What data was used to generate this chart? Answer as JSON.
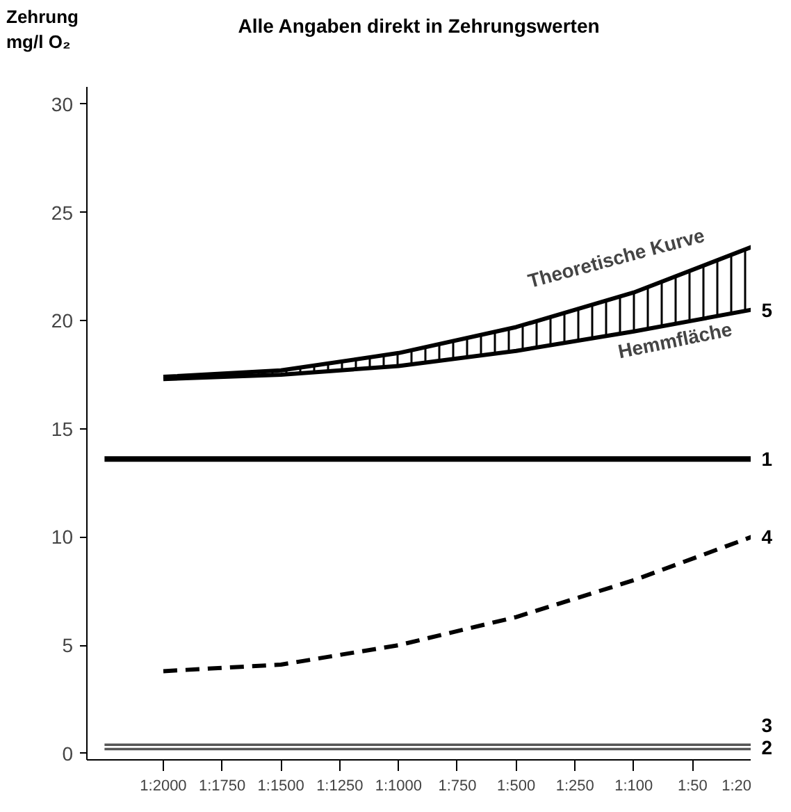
{
  "chart_data": {
    "type": "line",
    "title": "Alle Angaben direkt in Zehrungswerten",
    "ylabel": "Zehrung\nmg/l O₂",
    "categories": [
      null,
      "1:2000",
      "1:1750",
      "1:1500",
      "1:1250",
      "1:1000",
      "1:750",
      "1:500",
      "1:250",
      "1:100",
      "1:50",
      "1:20"
    ],
    "ylim": [
      -0.3,
      30.8
    ],
    "yticks": [
      0,
      5,
      10,
      15,
      20,
      25,
      30
    ],
    "grid": false,
    "series": [
      {
        "name": "5",
        "color": "#000000",
        "values": [
          null,
          17.3,
          null,
          17.5,
          null,
          17.9,
          null,
          18.6,
          null,
          19.5,
          null,
          20.5
        ]
      },
      {
        "color": "#000000",
        "values": [
          null,
          17.4,
          null,
          17.7,
          null,
          18.5,
          null,
          19.7,
          null,
          21.3,
          null,
          23.4
        ],
        "lower": [
          null,
          17.3,
          null,
          17.5,
          null,
          17.9,
          null,
          18.6,
          null,
          19.5,
          null,
          20.5
        ],
        "upper": [
          null,
          17.4,
          null,
          17.7,
          null,
          18.5,
          null,
          19.7,
          null,
          21.3,
          null,
          23.4
        ]
      },
      {
        "name": "1",
        "color": "#000000",
        "values": [
          13.6,
          13.6,
          13.6,
          13.6,
          13.6,
          13.6,
          13.6,
          13.6,
          13.6,
          13.6,
          13.6,
          13.6
        ]
      },
      {
        "name": "4",
        "color": "#000000",
        "values": [
          null,
          3.8,
          null,
          4.1,
          null,
          5.0,
          null,
          6.3,
          null,
          8.0,
          null,
          10.0
        ],
        "line_style": "dashed"
      },
      {
        "name": "3",
        "color": "#555555",
        "values": [
          0.4,
          0.4,
          0.4,
          0.4,
          0.4,
          0.4,
          0.4,
          0.4,
          0.4,
          0.4,
          0.4,
          0.4
        ]
      },
      {
        "name": "2",
        "color": "#555555",
        "values": [
          0.2,
          0.2,
          0.2,
          0.2,
          0.2,
          0.2,
          0.2,
          0.2,
          0.2,
          0.2,
          0.2,
          0.2
        ]
      }
    ],
    "annotations": [
      "Theoretische Kurve",
      "Hemmfläche"
    ]
  }
}
